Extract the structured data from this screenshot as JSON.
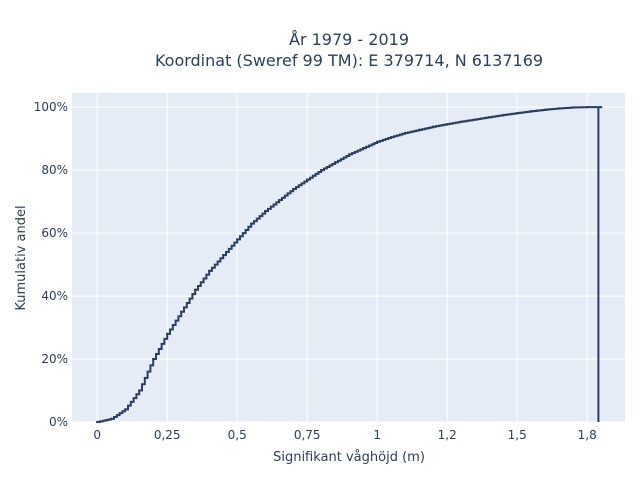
{
  "chart_data": {
    "type": "line",
    "line_shape": "step",
    "title": "År 1979 - 2019",
    "subtitle": "Koordinat (Sweref 99 TM): E 379714, N 6137169",
    "xlabel": "Signifikant våghöjd (m)",
    "ylabel": "Kumulativ andel",
    "xlim": [
      -0.09,
      1.885
    ],
    "ylim": [
      0,
      1.045
    ],
    "x_ticks": [
      0,
      0.25,
      0.5,
      0.75,
      1,
      1.25,
      1.5,
      1.75
    ],
    "x_tick_labels": [
      "0",
      "0,25",
      "0,5",
      "0,75",
      "1",
      "1,2",
      "1,5",
      "1,8"
    ],
    "y_ticks": [
      0,
      0.2,
      0.4,
      0.6,
      0.8,
      1.0
    ],
    "y_tick_labels": [
      "0%",
      "20%",
      "40%",
      "60%",
      "80%",
      "100%"
    ],
    "grid": true,
    "colors": {
      "plot_bg": "#e5ecf6",
      "grid": "#ffffff",
      "line": "#2a3f5f",
      "text": "#2a3f5f"
    },
    "series": [
      {
        "x": [
          0,
          0.05,
          0.1,
          0.15,
          0.2,
          0.25,
          0.3,
          0.35,
          0.4,
          0.45,
          0.5,
          0.55,
          0.6,
          0.65,
          0.7,
          0.75,
          0.8,
          0.85,
          0.9,
          0.95,
          1.0,
          1.05,
          1.1,
          1.15,
          1.2,
          1.25,
          1.3,
          1.35,
          1.4,
          1.45,
          1.5,
          1.55,
          1.6,
          1.65,
          1.7,
          1.75,
          1.8
        ],
        "y": [
          0,
          0.01,
          0.04,
          0.1,
          0.2,
          0.28,
          0.35,
          0.42,
          0.48,
          0.53,
          0.58,
          0.63,
          0.67,
          0.705,
          0.74,
          0.77,
          0.8,
          0.825,
          0.85,
          0.87,
          0.89,
          0.905,
          0.918,
          0.928,
          0.938,
          0.946,
          0.954,
          0.961,
          0.968,
          0.975,
          0.981,
          0.987,
          0.992,
          0.996,
          0.999,
          1.0,
          1.0
        ]
      }
    ]
  }
}
